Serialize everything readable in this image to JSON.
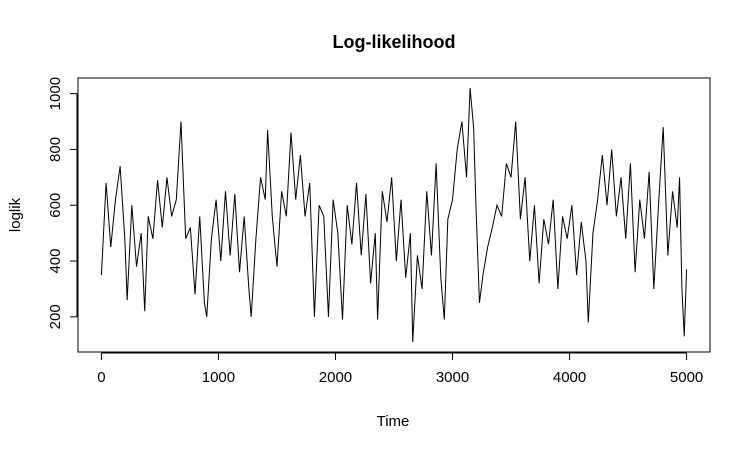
{
  "chart_data": {
    "type": "line",
    "title": "Log-likelihood",
    "x_label": "Time",
    "y_label": "loglik",
    "x": [
      0,
      40,
      80,
      120,
      160,
      200,
      220,
      260,
      300,
      340,
      370,
      400,
      440,
      480,
      520,
      560,
      600,
      640,
      680,
      720,
      760,
      800,
      840,
      880,
      900,
      940,
      980,
      1020,
      1060,
      1100,
      1140,
      1180,
      1220,
      1260,
      1280,
      1320,
      1360,
      1400,
      1420,
      1460,
      1500,
      1540,
      1580,
      1620,
      1660,
      1700,
      1740,
      1780,
      1820,
      1860,
      1900,
      1940,
      1980,
      2020,
      2060,
      2100,
      2140,
      2180,
      2220,
      2260,
      2300,
      2340,
      2360,
      2400,
      2440,
      2480,
      2520,
      2560,
      2600,
      2640,
      2660,
      2700,
      2740,
      2780,
      2820,
      2860,
      2900,
      2930,
      2960,
      3000,
      3040,
      3080,
      3120,
      3150,
      3180,
      3200,
      3230,
      3260,
      3300,
      3340,
      3380,
      3420,
      3460,
      3500,
      3540,
      3580,
      3620,
      3660,
      3700,
      3740,
      3780,
      3820,
      3860,
      3900,
      3940,
      3980,
      4020,
      4060,
      4100,
      4140,
      4160,
      4200,
      4240,
      4280,
      4320,
      4360,
      4400,
      4440,
      4480,
      4520,
      4560,
      4600,
      4640,
      4680,
      4720,
      4760,
      4800,
      4840,
      4880,
      4920,
      4940,
      4960,
      4980,
      5000
    ],
    "values": [
      350,
      680,
      450,
      620,
      740,
      480,
      260,
      600,
      380,
      500,
      220,
      560,
      480,
      690,
      520,
      700,
      560,
      620,
      900,
      480,
      520,
      280,
      560,
      250,
      200,
      480,
      620,
      400,
      650,
      420,
      640,
      360,
      560,
      300,
      200,
      480,
      700,
      620,
      870,
      560,
      380,
      650,
      560,
      860,
      620,
      780,
      560,
      680,
      200,
      600,
      560,
      200,
      620,
      500,
      190,
      600,
      460,
      680,
      420,
      640,
      320,
      500,
      190,
      650,
      540,
      700,
      400,
      620,
      340,
      500,
      110,
      420,
      300,
      650,
      420,
      750,
      340,
      190,
      550,
      620,
      800,
      900,
      700,
      1020,
      880,
      600,
      250,
      350,
      450,
      520,
      600,
      560,
      750,
      700,
      900,
      550,
      700,
      400,
      600,
      320,
      550,
      460,
      620,
      300,
      560,
      480,
      600,
      350,
      540,
      400,
      180,
      500,
      620,
      780,
      600,
      800,
      560,
      700,
      480,
      750,
      360,
      620,
      480,
      720,
      300,
      600,
      880,
      420,
      650,
      520,
      700,
      300,
      130,
      370
    ],
    "color": "#000000",
    "xlim": [
      -200,
      5200
    ],
    "ylim": [
      74,
      1056
    ],
    "xticks": [
      0,
      1000,
      2000,
      3000,
      4000,
      5000
    ],
    "yticks": [
      200,
      400,
      600,
      800,
      1000
    ]
  }
}
